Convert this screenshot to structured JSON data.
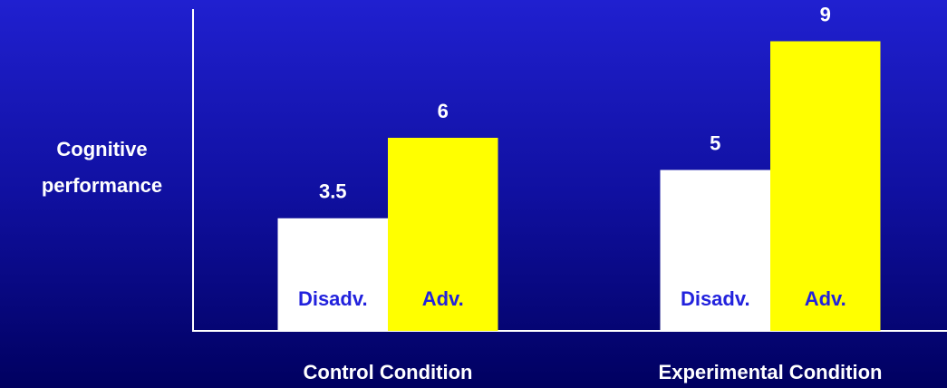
{
  "chart_data": {
    "type": "bar",
    "y_label": "Cognitive performance",
    "categories": [
      "Control Condition",
      "Experimental Condition"
    ],
    "series": [
      {
        "name": "Disadv.",
        "color": "#ffffff",
        "values": [
          3.5,
          5
        ]
      },
      {
        "name": "Adv.",
        "color": "#ffff00",
        "values": [
          6,
          9
        ]
      }
    ],
    "ylim": [
      0,
      10
    ]
  }
}
